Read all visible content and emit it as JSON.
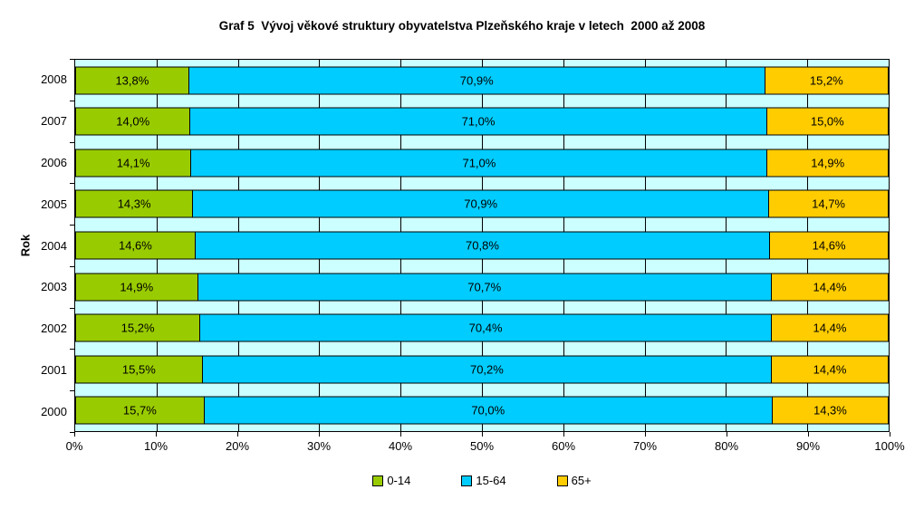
{
  "title": "Graf 5  Vývoj věkové struktury obyvatelstva Plzeňského kraje v letech  2000 až 2008",
  "chart_data": {
    "type": "bar",
    "orientation": "horizontal",
    "stacked": true,
    "percent_stacked": true,
    "title": "Graf 5  Vývoj věkové struktury obyvatelstva Plzeňského kraje v letech  2000 až 2008",
    "xlabel": "",
    "ylabel": "Rok",
    "xlim": [
      0,
      100
    ],
    "grid": true,
    "legend_position": "bottom",
    "plot_bg_color": "#CCFFFF",
    "gridline_color": "#000000",
    "categories": [
      "2008",
      "2007",
      "2006",
      "2005",
      "2004",
      "2003",
      "2002",
      "2001",
      "2000"
    ],
    "x_ticks": [
      "0%",
      "10%",
      "20%",
      "30%",
      "40%",
      "50%",
      "60%",
      "70%",
      "80%",
      "90%",
      "100%"
    ],
    "series": [
      {
        "name": "0-14",
        "color": "#99CC00",
        "values": [
          13.8,
          14.0,
          14.1,
          14.3,
          14.6,
          14.9,
          15.2,
          15.5,
          15.7
        ],
        "labels": [
          "13,8%",
          "14,0%",
          "14,1%",
          "14,3%",
          "14,6%",
          "14,9%",
          "15,2%",
          "15,5%",
          "15,7%"
        ]
      },
      {
        "name": "15-64",
        "color": "#00CCFF",
        "values": [
          70.9,
          71.0,
          71.0,
          70.9,
          70.8,
          70.7,
          70.4,
          70.2,
          70.0
        ],
        "labels": [
          "70,9%",
          "71,0%",
          "71,0%",
          "70,9%",
          "70,8%",
          "70,7%",
          "70,4%",
          "70,2%",
          "70,0%"
        ]
      },
      {
        "name": "65+",
        "color": "#FFCC00",
        "values": [
          15.2,
          15.0,
          14.9,
          14.7,
          14.6,
          14.4,
          14.4,
          14.4,
          14.3
        ],
        "labels": [
          "15,2%",
          "15,0%",
          "14,9%",
          "14,7%",
          "14,6%",
          "14,4%",
          "14,4%",
          "14,4%",
          "14,3%"
        ]
      }
    ]
  },
  "legend": {
    "items": [
      {
        "label": "0-14",
        "color": "#99CC00"
      },
      {
        "label": "15-64",
        "color": "#00CCFF"
      },
      {
        "label": "65+",
        "color": "#FFCC00"
      }
    ]
  }
}
